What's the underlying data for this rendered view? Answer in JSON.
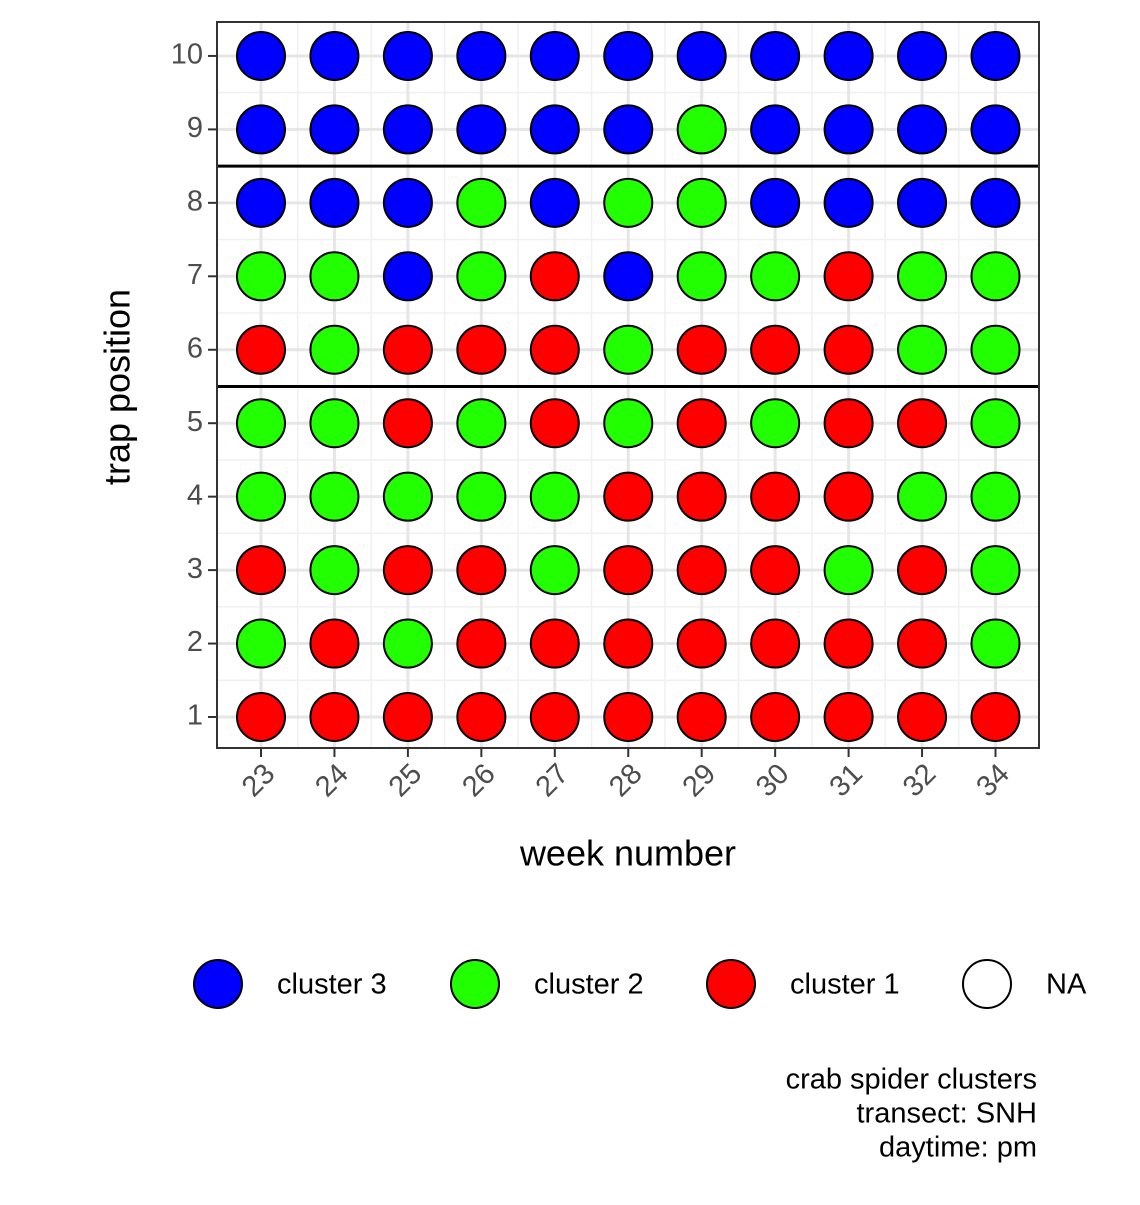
{
  "chart_data": {
    "type": "dot-matrix",
    "x_label": "week number",
    "y_label": "trap position",
    "categories": [
      23,
      24,
      25,
      26,
      27,
      28,
      29,
      30,
      31,
      32,
      34
    ],
    "y_categories": [
      1,
      2,
      3,
      4,
      5,
      6,
      7,
      8,
      9,
      10
    ],
    "grid": true,
    "hlines": [
      8.5,
      5.5
    ],
    "series": [
      {
        "name": "cluster 3",
        "color": "#0000ff",
        "x": [
          23,
          24,
          25,
          26,
          27,
          28,
          29,
          30,
          31,
          32,
          34,
          23,
          24,
          25,
          26,
          27,
          28,
          30,
          31,
          32,
          34,
          23,
          24,
          25,
          27,
          30,
          31,
          32,
          34,
          25,
          28
        ],
        "y": [
          10,
          10,
          10,
          10,
          10,
          10,
          10,
          10,
          10,
          10,
          10,
          9,
          9,
          9,
          9,
          9,
          9,
          9,
          9,
          9,
          9,
          8,
          8,
          8,
          8,
          8,
          8,
          8,
          8,
          7,
          7
        ]
      },
      {
        "name": "cluster 2",
        "color": "#22ff00",
        "x": [
          29,
          26,
          28,
          29,
          23,
          24,
          26,
          29,
          30,
          32,
          34,
          24,
          28,
          32,
          34,
          23,
          24,
          26,
          28,
          30,
          34,
          23,
          24,
          25,
          26,
          27,
          32,
          34,
          24,
          27,
          31,
          34,
          23,
          25,
          34
        ],
        "y": [
          9,
          8,
          8,
          8,
          7,
          7,
          7,
          7,
          7,
          7,
          7,
          6,
          6,
          6,
          6,
          5,
          5,
          5,
          5,
          5,
          5,
          4,
          4,
          4,
          4,
          4,
          4,
          4,
          3,
          3,
          3,
          3,
          2,
          2,
          2
        ]
      },
      {
        "name": "cluster 1",
        "color": "#ff0000",
        "x": [
          27,
          31,
          23,
          25,
          26,
          27,
          29,
          30,
          31,
          25,
          27,
          29,
          31,
          32,
          28,
          29,
          30,
          31,
          23,
          25,
          26,
          28,
          29,
          30,
          32,
          24,
          26,
          27,
          28,
          29,
          30,
          31,
          32,
          23,
          24,
          25,
          26,
          27,
          28,
          29,
          30,
          31,
          32,
          34
        ],
        "y": [
          7,
          7,
          6,
          6,
          6,
          6,
          6,
          6,
          6,
          5,
          5,
          5,
          5,
          5,
          4,
          4,
          4,
          4,
          3,
          3,
          3,
          3,
          3,
          3,
          3,
          2,
          2,
          2,
          2,
          2,
          2,
          2,
          2,
          1,
          1,
          1,
          1,
          1,
          1,
          1,
          1,
          1,
          1,
          1
        ]
      },
      {
        "name": "NA",
        "color": "#ffffff",
        "x": [],
        "y": []
      }
    ],
    "caption": [
      "crab spider clusters",
      "transect: SNH",
      "daytime: pm"
    ]
  }
}
